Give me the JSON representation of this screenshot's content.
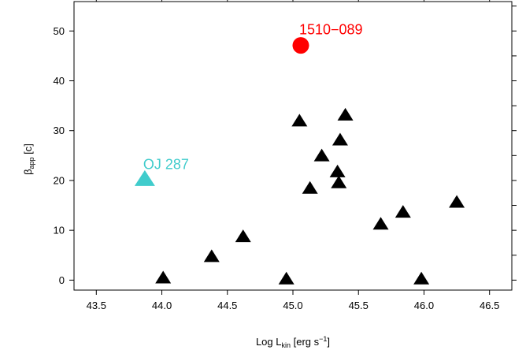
{
  "chart_data": {
    "type": "scatter",
    "xlabel": "Log L",
    "xlabel_sub": "kin",
    "xlabel_units_pre": " [erg s",
    "xlabel_units_sup": "−1",
    "xlabel_units_post": "]",
    "ylabel": "β",
    "ylabel_sub": "app",
    "ylabel_units": " [c]",
    "xlim": [
      43.33,
      46.67
    ],
    "ylim": [
      -2.0,
      55.9
    ],
    "x_ticks": [
      43.5,
      44.0,
      44.5,
      45.0,
      45.5,
      46.0,
      46.5
    ],
    "x_tick_labels": [
      "43.5",
      "44.0",
      "44.5",
      "45.0",
      "45.5",
      "46.0",
      "46.5"
    ],
    "y_ticks": [
      0,
      10,
      20,
      30,
      40,
      50
    ],
    "y_tick_labels": [
      "0",
      "10",
      "20",
      "30",
      "40",
      "50"
    ],
    "grid": false,
    "series": [
      {
        "marker": "triangle",
        "color": "#000000",
        "points": [
          {
            "x": 44.01,
            "y": 0.3
          },
          {
            "x": 44.38,
            "y": 4.6
          },
          {
            "x": 44.62,
            "y": 8.6
          },
          {
            "x": 44.95,
            "y": 0.1
          },
          {
            "x": 45.05,
            "y": 31.8
          },
          {
            "x": 45.13,
            "y": 18.3
          },
          {
            "x": 45.22,
            "y": 24.8
          },
          {
            "x": 45.34,
            "y": 21.6
          },
          {
            "x": 45.35,
            "y": 19.4
          },
          {
            "x": 45.36,
            "y": 28.0
          },
          {
            "x": 45.4,
            "y": 33.0
          },
          {
            "x": 45.67,
            "y": 11.1
          },
          {
            "x": 45.84,
            "y": 13.5
          },
          {
            "x": 45.98,
            "y": 0.1
          },
          {
            "x": 46.25,
            "y": 15.5
          }
        ]
      },
      {
        "marker": "triangle",
        "color": "#40cccc",
        "points": [
          {
            "x": 43.87,
            "y": 20.1
          }
        ]
      },
      {
        "marker": "circle",
        "color": "#ff0000",
        "points": [
          {
            "x": 45.06,
            "y": 47.1
          }
        ]
      }
    ],
    "annotations": [
      {
        "text": "OJ 287",
        "x": 43.87,
        "y": 20.1,
        "color": "#40cccc"
      },
      {
        "text": "1510−089",
        "x": 45.06,
        "y": 47.1,
        "color": "#ff0000"
      }
    ]
  }
}
